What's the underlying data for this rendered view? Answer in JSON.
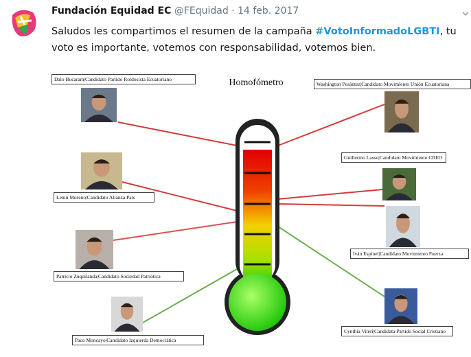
{
  "tweet": {
    "author_name": "Fundación Equidad EC",
    "handle": "@FEquidad",
    "separator": "·",
    "date": "14 feb. 2017",
    "text_before": "Saludos les compartimos el resumen de la campaña ",
    "hashtag": "#VotoInformadoLGBTI",
    "text_after": ", tu voto es importante, votemos con responsabilidad, votemos bien."
  },
  "image": {
    "title": "Homofómetro",
    "candidates": [
      {
        "label": "Dalo Bucaram|Candidato Partido Roldosista Ecuatoriano"
      },
      {
        "label": "Lenin Moreno|Candidato Alianza País"
      },
      {
        "label": "Patricio Zuquilanda|Candidato Sociedad Patriótica"
      },
      {
        "label": "Paco Moncayo|Candidato Izquierda Democrática"
      },
      {
        "label": "Washington Pesántez|Candidato Movimiento Unión Ecuatoriana"
      },
      {
        "label": "Guillermo Lasso|Candidato Movimiento CREO"
      },
      {
        "label": "Iván Espinel|Candidato Movimiento Fuerza"
      },
      {
        "label": "Cynthia Viteri|Candidata Partido Social Cristiano"
      }
    ]
  }
}
